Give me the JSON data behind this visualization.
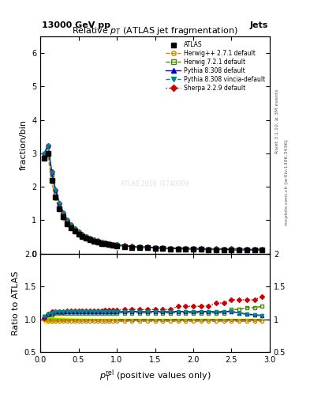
{
  "title": "Relative $p_T$ (ATLAS jet fragmentation)",
  "top_left_label": "13000 GeV pp",
  "top_right_label": "Jets",
  "right_label_top": "Rivet 3.1.10, ≥ 3M events",
  "right_label_bottom": "mcplots.cern.ch [arXiv:1306.3436]",
  "watermark": "ATLAS 2019  I1740909",
  "ylabel_main": "fraction/bin",
  "ylabel_ratio": "Ratio to ATLAS",
  "xlim": [
    0,
    3.0
  ],
  "ylim_main": [
    0,
    6.5
  ],
  "ylim_ratio": [
    0.5,
    2.0
  ],
  "x_data": [
    0.05,
    0.1,
    0.15,
    0.2,
    0.25,
    0.3,
    0.35,
    0.4,
    0.45,
    0.5,
    0.55,
    0.6,
    0.65,
    0.7,
    0.75,
    0.8,
    0.85,
    0.9,
    0.95,
    1.0,
    1.1,
    1.2,
    1.3,
    1.4,
    1.5,
    1.6,
    1.7,
    1.8,
    1.9,
    2.0,
    2.1,
    2.2,
    2.3,
    2.4,
    2.5,
    2.6,
    2.7,
    2.8,
    2.9
  ],
  "atlas_y": [
    2.85,
    3.0,
    2.2,
    1.7,
    1.35,
    1.1,
    0.9,
    0.77,
    0.67,
    0.58,
    0.51,
    0.46,
    0.41,
    0.37,
    0.34,
    0.31,
    0.29,
    0.27,
    0.25,
    0.24,
    0.21,
    0.19,
    0.18,
    0.17,
    0.16,
    0.15,
    0.145,
    0.14,
    0.135,
    0.13,
    0.125,
    0.12,
    0.118,
    0.115,
    0.112,
    0.11,
    0.108,
    0.106,
    0.105
  ],
  "atlas_err": [
    0.05,
    0.05,
    0.04,
    0.03,
    0.025,
    0.02,
    0.018,
    0.015,
    0.013,
    0.011,
    0.01,
    0.009,
    0.008,
    0.007,
    0.006,
    0.006,
    0.005,
    0.005,
    0.005,
    0.005,
    0.004,
    0.004,
    0.003,
    0.003,
    0.003,
    0.003,
    0.003,
    0.003,
    0.003,
    0.003,
    0.003,
    0.003,
    0.003,
    0.003,
    0.003,
    0.003,
    0.003,
    0.003,
    0.003
  ],
  "herwig271_ratio": [
    1.0,
    0.98,
    0.97,
    0.97,
    0.97,
    0.97,
    0.97,
    0.97,
    0.97,
    0.97,
    0.97,
    0.97,
    0.97,
    0.97,
    0.97,
    0.97,
    0.97,
    0.97,
    0.97,
    0.97,
    0.97,
    0.97,
    0.97,
    0.97,
    0.97,
    0.97,
    0.97,
    0.97,
    0.97,
    0.97,
    0.97,
    0.97,
    0.97,
    0.97,
    0.97,
    0.97,
    0.97,
    0.97,
    0.97
  ],
  "herwig721_ratio": [
    1.05,
    1.07,
    1.07,
    1.1,
    1.1,
    1.1,
    1.1,
    1.1,
    1.1,
    1.1,
    1.1,
    1.1,
    1.1,
    1.1,
    1.1,
    1.1,
    1.1,
    1.1,
    1.1,
    1.1,
    1.1,
    1.1,
    1.1,
    1.1,
    1.1,
    1.1,
    1.1,
    1.1,
    1.1,
    1.1,
    1.1,
    1.1,
    1.1,
    1.1,
    1.15,
    1.15,
    1.18,
    1.18,
    1.2
  ],
  "pythia8308_ratio": [
    1.05,
    1.08,
    1.1,
    1.12,
    1.12,
    1.12,
    1.12,
    1.12,
    1.12,
    1.12,
    1.12,
    1.12,
    1.12,
    1.12,
    1.12,
    1.12,
    1.12,
    1.12,
    1.12,
    1.12,
    1.12,
    1.12,
    1.12,
    1.12,
    1.12,
    1.12,
    1.12,
    1.12,
    1.12,
    1.12,
    1.12,
    1.12,
    1.12,
    1.12,
    1.12,
    1.1,
    1.08,
    1.07,
    1.06
  ],
  "pythia8308v_ratio": [
    1.05,
    1.08,
    1.1,
    1.12,
    1.12,
    1.12,
    1.12,
    1.12,
    1.12,
    1.12,
    1.12,
    1.12,
    1.12,
    1.12,
    1.12,
    1.12,
    1.12,
    1.12,
    1.12,
    1.12,
    1.12,
    1.12,
    1.12,
    1.12,
    1.12,
    1.12,
    1.12,
    1.12,
    1.12,
    1.12,
    1.12,
    1.12,
    1.12,
    1.12,
    1.12,
    1.1,
    1.08,
    1.07,
    1.06
  ],
  "sherpa_ratio": [
    1.02,
    1.08,
    1.12,
    1.12,
    1.12,
    1.12,
    1.13,
    1.13,
    1.13,
    1.13,
    1.13,
    1.13,
    1.13,
    1.13,
    1.13,
    1.13,
    1.14,
    1.14,
    1.14,
    1.14,
    1.15,
    1.15,
    1.15,
    1.15,
    1.15,
    1.15,
    1.15,
    1.2,
    1.2,
    1.2,
    1.2,
    1.2,
    1.25,
    1.25,
    1.3,
    1.3,
    1.3,
    1.3,
    1.35
  ],
  "atlas_band_yellow": [
    0.06,
    0.055,
    0.05,
    0.04,
    0.035,
    0.03,
    0.025,
    0.022,
    0.02,
    0.018,
    0.016,
    0.015,
    0.014,
    0.013,
    0.012,
    0.012,
    0.011,
    0.011,
    0.011,
    0.011,
    0.01,
    0.01,
    0.01,
    0.01,
    0.01,
    0.01,
    0.01,
    0.01,
    0.01,
    0.01,
    0.01,
    0.01,
    0.01,
    0.01,
    0.01,
    0.01,
    0.01,
    0.01,
    0.01
  ],
  "atlas_band_green": [
    0.03,
    0.028,
    0.025,
    0.02,
    0.017,
    0.015,
    0.012,
    0.011,
    0.01,
    0.009,
    0.008,
    0.007,
    0.007,
    0.006,
    0.006,
    0.006,
    0.005,
    0.005,
    0.005,
    0.005,
    0.005,
    0.005,
    0.005,
    0.005,
    0.005,
    0.005,
    0.005,
    0.005,
    0.005,
    0.005,
    0.005,
    0.005,
    0.005,
    0.005,
    0.005,
    0.005,
    0.005,
    0.005,
    0.005
  ],
  "color_atlas": "#000000",
  "color_herwig271": "#cc8800",
  "color_herwig721": "#448800",
  "color_pythia8308": "#0000cc",
  "color_pythia8308v": "#008888",
  "color_sherpa": "#cc0000",
  "color_yellow_band": "#ffff00",
  "color_green_band": "#88cc00"
}
